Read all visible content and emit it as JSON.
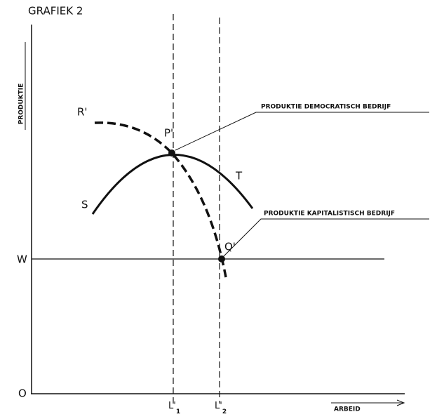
{
  "header": {
    "title": "GRAFIEK 2"
  },
  "axes": {
    "y_label": "PRODUKTIE",
    "x_label": "ARBEID",
    "origin": "O",
    "w_level": "W"
  },
  "points": {
    "r": "R'",
    "p": "P'",
    "s": "S",
    "t": "T",
    "q": "Q'"
  },
  "x_marks": [
    {
      "text": "L'",
      "sub": "1"
    },
    {
      "text": "L'",
      "sub": "2"
    }
  ],
  "annotations": [
    "PRODUKTIE DEMOCRATISCH BEDRIJF",
    "PRODUKTIE KAPITALISTISCH BEDRIJF"
  ]
}
